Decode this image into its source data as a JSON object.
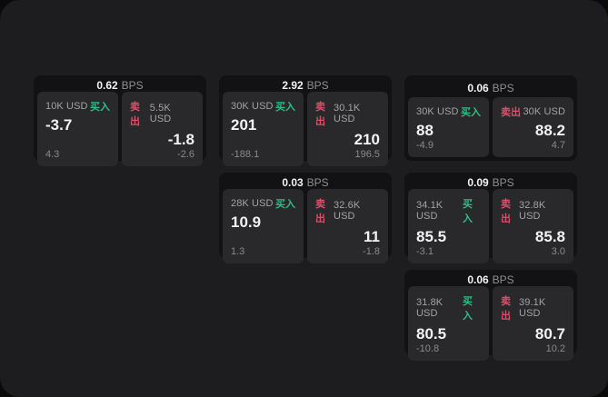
{
  "colors": {
    "page_bg": "#0a0a0a",
    "panel_bg": "#1d1d1f",
    "card_bg": "#121214",
    "tile_bg": "#29292b",
    "buy_green": "#2ebd85",
    "sell_red": "#d8506a"
  },
  "bps_unit": "BPS",
  "cards": [
    {
      "bps_value": "0.62",
      "buy": {
        "amount": "10K USD",
        "side": "买入",
        "price": "-3.7",
        "delta": "4.3"
      },
      "sell": {
        "amount": "5.5K USD",
        "side": "卖出",
        "price": "-1.8",
        "delta": "-2.6"
      }
    },
    {
      "bps_value": "2.92",
      "buy": {
        "amount": "30K USD",
        "side": "买入",
        "price": "201",
        "delta": "-188.1"
      },
      "sell": {
        "amount": "30.1K USD",
        "side": "卖出",
        "price": "210",
        "delta": "196.5"
      }
    },
    {
      "bps_value": "0.06",
      "buy": {
        "amount": "30K USD",
        "side": "买入",
        "price": "88",
        "delta": "-4.9"
      },
      "sell": {
        "amount": "30K USD",
        "side": "卖出",
        "price": "88.2",
        "delta": "4.7"
      }
    },
    {
      "bps_value": "0.03",
      "buy": {
        "amount": "28K USD",
        "side": "买入",
        "price": "10.9",
        "delta": "1.3"
      },
      "sell": {
        "amount": "32.6K USD",
        "side": "卖出",
        "price": "11",
        "delta": "-1.8"
      }
    },
    {
      "bps_value": "0.09",
      "buy": {
        "amount": "34.1K USD",
        "side": "买入",
        "price": "85.5",
        "delta": "-3.1"
      },
      "sell": {
        "amount": "32.8K USD",
        "side": "卖出",
        "price": "85.8",
        "delta": "3.0"
      }
    },
    {
      "bps_value": "0.06",
      "buy": {
        "amount": "31.8K USD",
        "side": "买入",
        "price": "80.5",
        "delta": "-10.8"
      },
      "sell": {
        "amount": "39.1K USD",
        "side": "卖出",
        "price": "80.7",
        "delta": "10.2"
      }
    }
  ]
}
